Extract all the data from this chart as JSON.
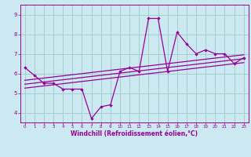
{
  "xlabel": "Windchill (Refroidissement éolien,°C)",
  "bg_color": "#cce8f0",
  "line_color": "#990099",
  "grid_color": "#99cccc",
  "xlim": [
    -0.5,
    23.5
  ],
  "ylim": [
    3.5,
    9.5
  ],
  "yticks": [
    4,
    5,
    6,
    7,
    8,
    9
  ],
  "xticks": [
    0,
    1,
    2,
    3,
    4,
    5,
    6,
    7,
    8,
    9,
    10,
    11,
    12,
    13,
    14,
    15,
    16,
    17,
    18,
    19,
    20,
    21,
    22,
    23
  ],
  "series1_x": [
    0,
    1,
    2,
    3,
    4,
    5,
    6,
    7,
    8,
    9,
    10,
    11,
    12,
    13,
    14,
    15,
    16,
    17,
    18,
    19,
    20,
    21,
    22,
    23
  ],
  "series1_y": [
    6.3,
    5.9,
    5.5,
    5.5,
    5.2,
    5.2,
    5.2,
    3.7,
    4.3,
    4.4,
    6.1,
    6.3,
    6.1,
    8.8,
    8.8,
    6.1,
    8.1,
    7.5,
    7.0,
    7.2,
    7.0,
    7.0,
    6.5,
    6.8
  ],
  "trend1_x": [
    0,
    23
  ],
  "trend1_y": [
    5.45,
    6.75
  ],
  "trend2_x": [
    0,
    23
  ],
  "trend2_y": [
    5.25,
    6.55
  ],
  "trend3_x": [
    0,
    23
  ],
  "trend3_y": [
    5.65,
    6.95
  ]
}
